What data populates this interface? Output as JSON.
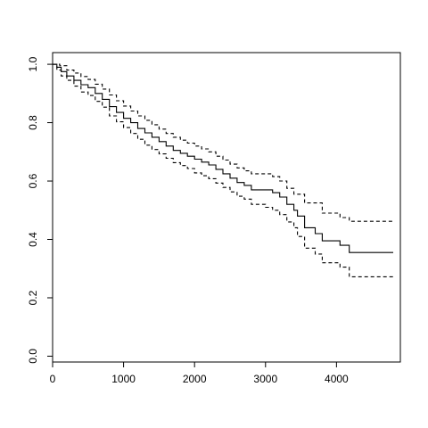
{
  "chart_data": {
    "type": "line",
    "title": "",
    "xlabel": "",
    "ylabel": "",
    "xlim": [
      0,
      4900
    ],
    "ylim": [
      -0.02,
      1.04
    ],
    "xticks": [
      0,
      1000,
      2000,
      3000,
      4000
    ],
    "xtick_labels": [
      "0",
      "1000",
      "2000",
      "3000",
      "4000"
    ],
    "yticks": [
      0.0,
      0.2,
      0.4,
      0.6,
      0.8,
      1.0
    ],
    "ytick_labels": [
      "0.0",
      "0.2",
      "0.4",
      "0.6",
      "0.8",
      "1.0"
    ],
    "grid": false,
    "legend": "none",
    "series": [
      {
        "style": "solid",
        "color": "#000000",
        "points": [
          [
            0,
            1.0
          ],
          [
            60,
            0.99
          ],
          [
            120,
            0.975
          ],
          [
            200,
            0.96
          ],
          [
            300,
            0.945
          ],
          [
            400,
            0.93
          ],
          [
            500,
            0.92
          ],
          [
            600,
            0.9
          ],
          [
            700,
            0.88
          ],
          [
            800,
            0.855
          ],
          [
            900,
            0.835
          ],
          [
            1000,
            0.815
          ],
          [
            1100,
            0.8
          ],
          [
            1200,
            0.78
          ],
          [
            1300,
            0.765
          ],
          [
            1400,
            0.75
          ],
          [
            1500,
            0.735
          ],
          [
            1600,
            0.72
          ],
          [
            1700,
            0.705
          ],
          [
            1800,
            0.695
          ],
          [
            1900,
            0.685
          ],
          [
            2000,
            0.675
          ],
          [
            2100,
            0.665
          ],
          [
            2200,
            0.655
          ],
          [
            2300,
            0.64
          ],
          [
            2400,
            0.625
          ],
          [
            2500,
            0.61
          ],
          [
            2600,
            0.595
          ],
          [
            2700,
            0.585
          ],
          [
            2800,
            0.57
          ],
          [
            3000,
            0.57
          ],
          [
            3100,
            0.56
          ],
          [
            3200,
            0.545
          ],
          [
            3300,
            0.52
          ],
          [
            3400,
            0.5
          ],
          [
            3450,
            0.48
          ],
          [
            3550,
            0.44
          ],
          [
            3700,
            0.42
          ],
          [
            3800,
            0.395
          ],
          [
            4050,
            0.38
          ],
          [
            4180,
            0.355
          ],
          [
            4800,
            0.355
          ]
        ]
      },
      {
        "style": "dashed",
        "color": "#000000",
        "points": [
          [
            0,
            1.0
          ],
          [
            100,
            0.995
          ],
          [
            200,
            0.98
          ],
          [
            300,
            0.97
          ],
          [
            400,
            0.958
          ],
          [
            500,
            0.948
          ],
          [
            600,
            0.932
          ],
          [
            700,
            0.915
          ],
          [
            800,
            0.895
          ],
          [
            900,
            0.875
          ],
          [
            1000,
            0.857
          ],
          [
            1100,
            0.84
          ],
          [
            1200,
            0.823
          ],
          [
            1300,
            0.808
          ],
          [
            1400,
            0.793
          ],
          [
            1500,
            0.778
          ],
          [
            1600,
            0.763
          ],
          [
            1700,
            0.75
          ],
          [
            1800,
            0.74
          ],
          [
            1900,
            0.73
          ],
          [
            2000,
            0.72
          ],
          [
            2100,
            0.71
          ],
          [
            2200,
            0.7
          ],
          [
            2300,
            0.685
          ],
          [
            2400,
            0.672
          ],
          [
            2500,
            0.658
          ],
          [
            2600,
            0.645
          ],
          [
            2700,
            0.635
          ],
          [
            2800,
            0.625
          ],
          [
            3000,
            0.625
          ],
          [
            3100,
            0.615
          ],
          [
            3200,
            0.6
          ],
          [
            3300,
            0.575
          ],
          [
            3400,
            0.555
          ],
          [
            3550,
            0.525
          ],
          [
            3800,
            0.49
          ],
          [
            4050,
            0.475
          ],
          [
            4180,
            0.462
          ],
          [
            4800,
            0.462
          ]
        ]
      },
      {
        "style": "dashed",
        "color": "#000000",
        "points": [
          [
            0,
            1.0
          ],
          [
            60,
            0.98
          ],
          [
            120,
            0.96
          ],
          [
            200,
            0.945
          ],
          [
            300,
            0.925
          ],
          [
            400,
            0.905
          ],
          [
            500,
            0.893
          ],
          [
            600,
            0.873
          ],
          [
            700,
            0.853
          ],
          [
            800,
            0.823
          ],
          [
            900,
            0.803
          ],
          [
            1000,
            0.783
          ],
          [
            1100,
            0.763
          ],
          [
            1200,
            0.743
          ],
          [
            1300,
            0.723
          ],
          [
            1400,
            0.708
          ],
          [
            1500,
            0.693
          ],
          [
            1600,
            0.678
          ],
          [
            1700,
            0.663
          ],
          [
            1800,
            0.653
          ],
          [
            1900,
            0.643
          ],
          [
            2000,
            0.628
          ],
          [
            2100,
            0.618
          ],
          [
            2200,
            0.608
          ],
          [
            2300,
            0.593
          ],
          [
            2400,
            0.578
          ],
          [
            2500,
            0.563
          ],
          [
            2600,
            0.548
          ],
          [
            2700,
            0.538
          ],
          [
            2800,
            0.52
          ],
          [
            3000,
            0.51
          ],
          [
            3100,
            0.5
          ],
          [
            3200,
            0.485
          ],
          [
            3300,
            0.46
          ],
          [
            3400,
            0.44
          ],
          [
            3450,
            0.41
          ],
          [
            3550,
            0.37
          ],
          [
            3700,
            0.35
          ],
          [
            3800,
            0.32
          ],
          [
            4050,
            0.305
          ],
          [
            4180,
            0.272
          ],
          [
            4800,
            0.272
          ]
        ]
      }
    ]
  }
}
